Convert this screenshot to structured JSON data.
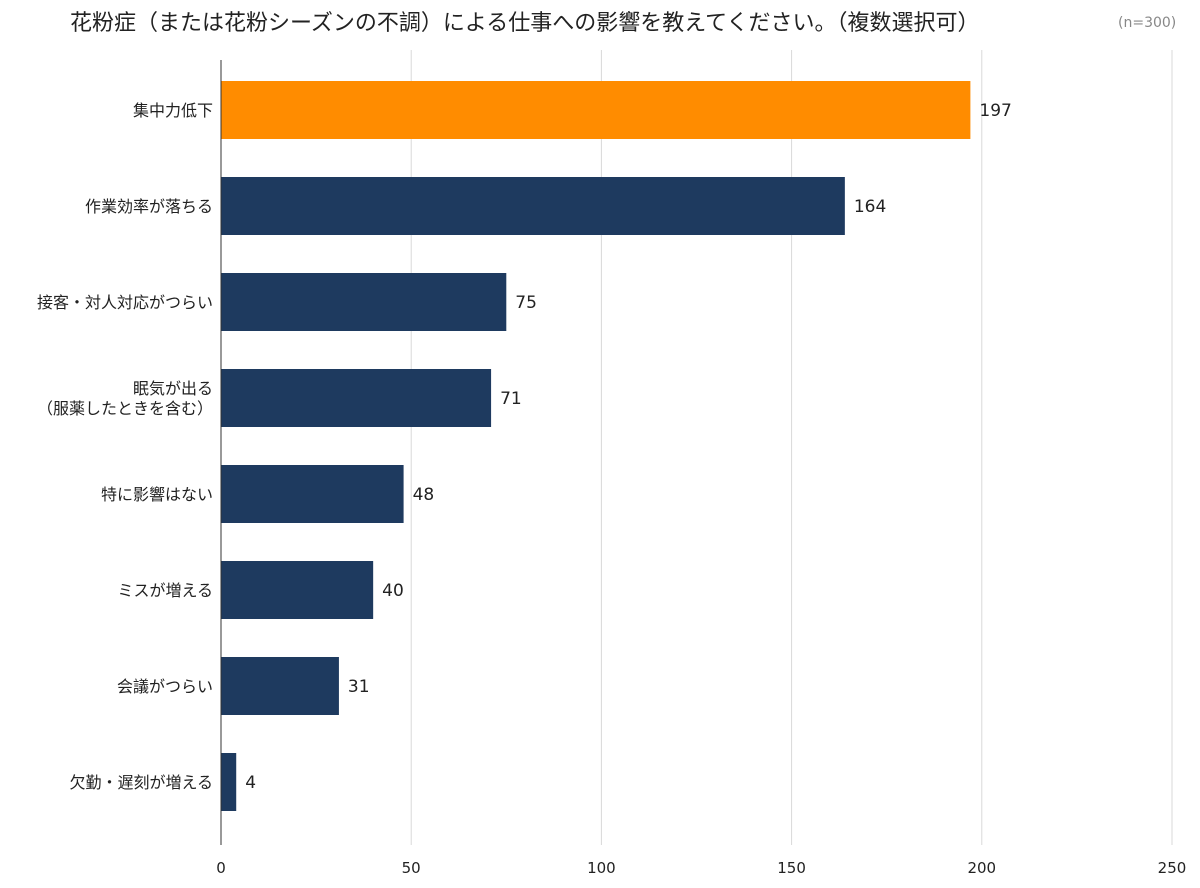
{
  "chart_data": {
    "type": "bar",
    "orientation": "horizontal",
    "title": "花粉症（または花粉シーズンの不調）による仕事への影響を教えてください。（複数選択可）",
    "subtitle": "(n=300)",
    "categories": [
      "集中力低下",
      "作業効率が落ちる",
      "接客・対人対応がつらい",
      "眠気が出る\n（服薬したときを含む）",
      "特に影響はない",
      "ミスが増える",
      "会議がつらい",
      "欠勤・遅刻が増える"
    ],
    "values": [
      197,
      164,
      75,
      71,
      48,
      40,
      31,
      4
    ],
    "xlim": [
      0,
      250
    ],
    "xticks": [
      0,
      50,
      100,
      150,
      200,
      250
    ],
    "grid": true,
    "colors": {
      "highlight": "#FF8C00",
      "default": "#1E3A5F"
    },
    "highlight_index": 0
  }
}
